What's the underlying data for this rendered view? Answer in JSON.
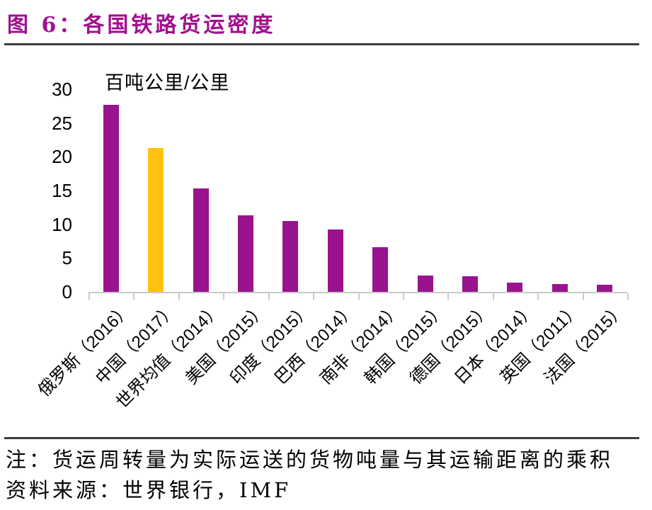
{
  "title": "图 6：各国铁路货运密度",
  "notes": {
    "note": "注：货运周转量为实际运送的货物吨量与其运输距离的乘积",
    "source": "资料来源：世界银行，IMF"
  },
  "colors": {
    "title": "#A1108F",
    "bar": "#99138F",
    "highlight_bar": "#FFC20E",
    "axis": "#C9C9C9",
    "rule": "#3C3C3C",
    "text": "#000000"
  },
  "chart_data": {
    "type": "bar",
    "title": "各国铁路货运密度",
    "unit_label": "百吨公里/公里",
    "categories": [
      "俄罗斯（2016）",
      "中国（2017）",
      "世界均值（2014）",
      "美国（2015）",
      "印度（2015）",
      "巴西（2014）",
      "南非（2014）",
      "韩国（2015）",
      "德国（2015）",
      "日本（2014）",
      "英国（2011）",
      "法国（2015）"
    ],
    "values": [
      27.7,
      21.3,
      15.3,
      11.3,
      10.5,
      9.2,
      6.6,
      2.4,
      2.3,
      1.4,
      1.2,
      1.1
    ],
    "highlight_index": 1,
    "highlight_category": "中国（2017）",
    "xlabel": "",
    "ylabel": "百吨公里/公里",
    "ylim": [
      0,
      30
    ],
    "yticks": [
      0,
      5,
      10,
      15,
      20,
      25,
      30
    ],
    "grid": false,
    "legend": null
  }
}
